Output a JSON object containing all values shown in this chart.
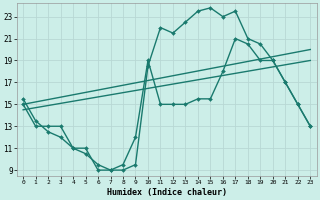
{
  "xlabel": "Humidex (Indice chaleur)",
  "bg_color": "#cceee8",
  "grid_color": "#b8d8d4",
  "line_color": "#1a7a6e",
  "xlim": [
    -0.5,
    23.5
  ],
  "ylim": [
    8.5,
    24.2
  ],
  "yticks": [
    9,
    11,
    13,
    15,
    17,
    19,
    21,
    23
  ],
  "xticks": [
    0,
    1,
    2,
    3,
    4,
    5,
    6,
    7,
    8,
    9,
    10,
    11,
    12,
    13,
    14,
    15,
    16,
    17,
    18,
    19,
    20,
    21,
    22,
    23
  ],
  "series": [
    {
      "x": [
        0,
        1,
        2,
        3,
        4,
        5,
        6,
        7,
        8,
        9,
        10,
        11,
        12,
        13,
        14,
        15,
        16,
        17,
        18,
        19,
        20,
        21,
        22,
        23
      ],
      "y": [
        15,
        13,
        13,
        13,
        11,
        11,
        9,
        9,
        9.5,
        12,
        19,
        15,
        15,
        15,
        15.5,
        15.5,
        18,
        21,
        20.5,
        19,
        19,
        17,
        15,
        13
      ],
      "marker": "D",
      "markersize": 2.0,
      "linewidth": 1.0
    },
    {
      "x": [
        0,
        23
      ],
      "y": [
        15,
        20
      ],
      "marker": null,
      "markersize": 0,
      "linewidth": 1.0
    },
    {
      "x": [
        0,
        23
      ],
      "y": [
        14.5,
        19
      ],
      "marker": null,
      "markersize": 0,
      "linewidth": 1.0
    },
    {
      "x": [
        0,
        1,
        2,
        3,
        4,
        5,
        6,
        7,
        8,
        9,
        10,
        11,
        12,
        13,
        14,
        15,
        16,
        17,
        18,
        19,
        20,
        21,
        22,
        23
      ],
      "y": [
        15.5,
        13.5,
        12.5,
        12,
        11,
        10.5,
        9.5,
        9,
        9,
        9.5,
        18.5,
        22,
        21.5,
        22.5,
        23.5,
        23.8,
        23,
        23.5,
        21,
        20.5,
        19,
        17,
        15,
        13
      ],
      "marker": "D",
      "markersize": 2.0,
      "linewidth": 1.0
    }
  ]
}
